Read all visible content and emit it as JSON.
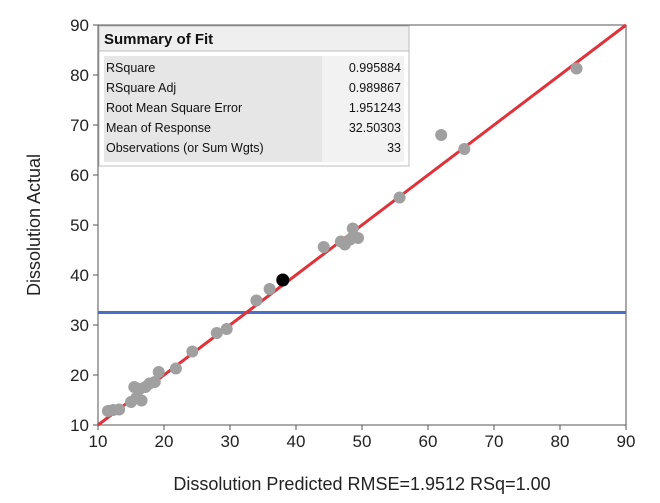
{
  "chart_data": {
    "type": "scatter",
    "xlabel": "Dissolution Predicted RMSE=1.9512 RSq=1.00",
    "ylabel": "Dissolution Actual",
    "xlim": [
      10,
      90
    ],
    "ylim": [
      10,
      90
    ],
    "xticks": [
      "10",
      "20",
      "30",
      "40",
      "50",
      "60",
      "70",
      "80",
      "90"
    ],
    "yticks": [
      "10",
      "20",
      "30",
      "40",
      "50",
      "60",
      "70",
      "80",
      "90"
    ],
    "grid": false,
    "fit_line": {
      "slope": 1,
      "intercept": 0,
      "color": "#e0323a"
    },
    "mean_line": {
      "y": 32.50303,
      "color": "#4a6fc8"
    },
    "points": [
      {
        "x": 11.5,
        "y": 12.8
      },
      {
        "x": 12.3,
        "y": 13.0
      },
      {
        "x": 13.2,
        "y": 13.1
      },
      {
        "x": 15.0,
        "y": 14.6
      },
      {
        "x": 15.8,
        "y": 15.4
      },
      {
        "x": 16.6,
        "y": 14.9
      },
      {
        "x": 15.5,
        "y": 17.6
      },
      {
        "x": 16.3,
        "y": 17.2
      },
      {
        "x": 17.2,
        "y": 17.6
      },
      {
        "x": 17.8,
        "y": 18.3
      },
      {
        "x": 18.6,
        "y": 18.6
      },
      {
        "x": 19.2,
        "y": 20.6
      },
      {
        "x": 21.8,
        "y": 21.3
      },
      {
        "x": 24.3,
        "y": 24.7
      },
      {
        "x": 28.0,
        "y": 28.4
      },
      {
        "x": 29.5,
        "y": 29.2
      },
      {
        "x": 34.0,
        "y": 34.9
      },
      {
        "x": 36.0,
        "y": 37.2
      },
      {
        "x": 44.2,
        "y": 45.6
      },
      {
        "x": 46.8,
        "y": 46.7
      },
      {
        "x": 47.4,
        "y": 46.1
      },
      {
        "x": 48.2,
        "y": 47.1
      },
      {
        "x": 48.6,
        "y": 49.3
      },
      {
        "x": 49.4,
        "y": 47.4
      },
      {
        "x": 55.7,
        "y": 55.5
      },
      {
        "x": 62.0,
        "y": 68.0
      },
      {
        "x": 65.5,
        "y": 65.2
      },
      {
        "x": 82.5,
        "y": 81.3
      }
    ],
    "highlight_point": {
      "x": 38.0,
      "y": 39.0,
      "color": "#000000"
    },
    "point_color": "#a0a0a0",
    "summary": {
      "title": "Summary of Fit",
      "rows": [
        {
          "label": "RSquare",
          "value": "0.995884"
        },
        {
          "label": "RSquare Adj",
          "value": "0.989867"
        },
        {
          "label": "Root Mean Square Error",
          "value": "1.951243"
        },
        {
          "label": "Mean of Response",
          "value": "32.50303"
        },
        {
          "label": "Observations (or Sum Wgts)",
          "value": "33"
        }
      ]
    }
  }
}
